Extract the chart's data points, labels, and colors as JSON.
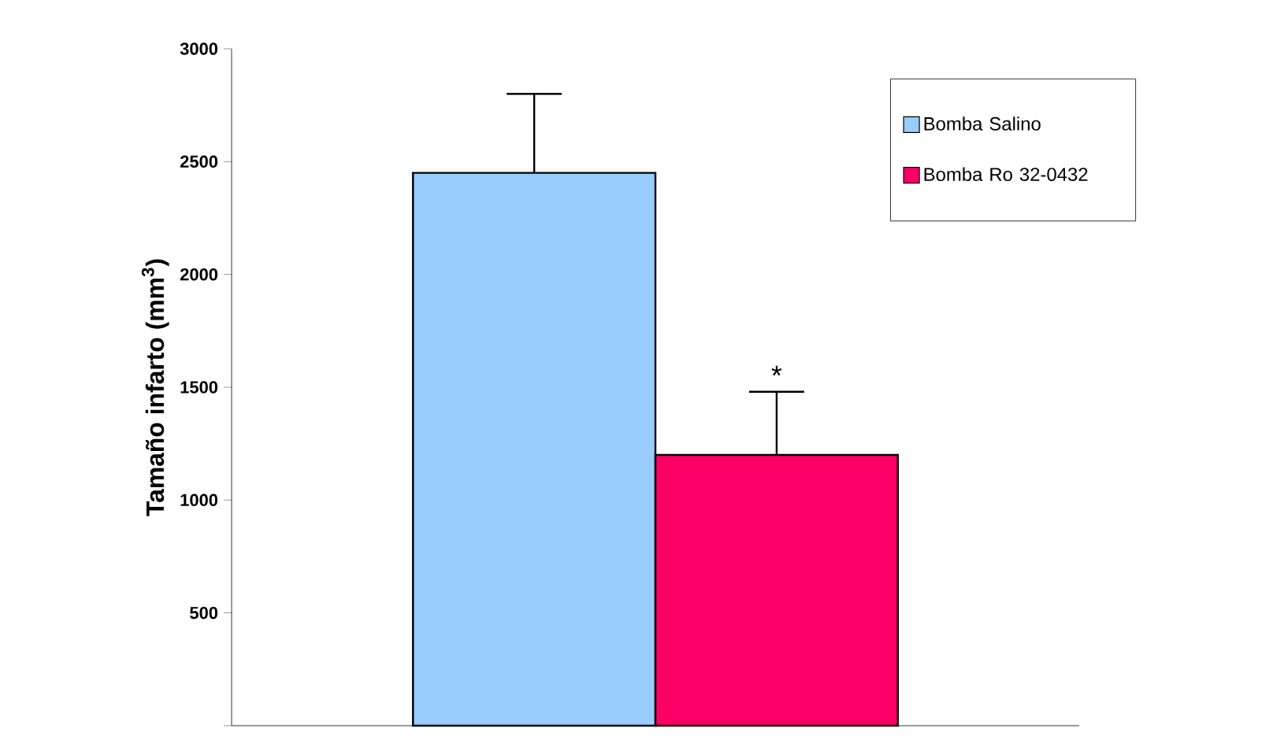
{
  "chart_data": {
    "type": "bar",
    "ylabel": "Tamaño infarto (mm$^{3}$)",
    "categories": [
      null
    ],
    "series": [
      {
        "name": "Bomba Salino",
        "color": "#99ccff",
        "values": [
          2450
        ],
        "errors": [
          [
            2450,
            2800
          ]
        ]
      },
      {
        "name": "Bomba Ro 32-0432",
        "color": "#ff0066",
        "values": [
          1200
        ],
        "errors": [
          [
            1200,
            1480
          ]
        ]
      }
    ],
    "ylim": [
      0,
      3000
    ],
    "yticks": [
      {
        "value": 0,
        "label": null
      },
      500,
      1000,
      1500,
      2000,
      2500,
      3000
    ],
    "legend": "top right",
    "grid": false,
    "annotations": [
      {
        "text": "*",
        "y": 1480
      }
    ]
  }
}
